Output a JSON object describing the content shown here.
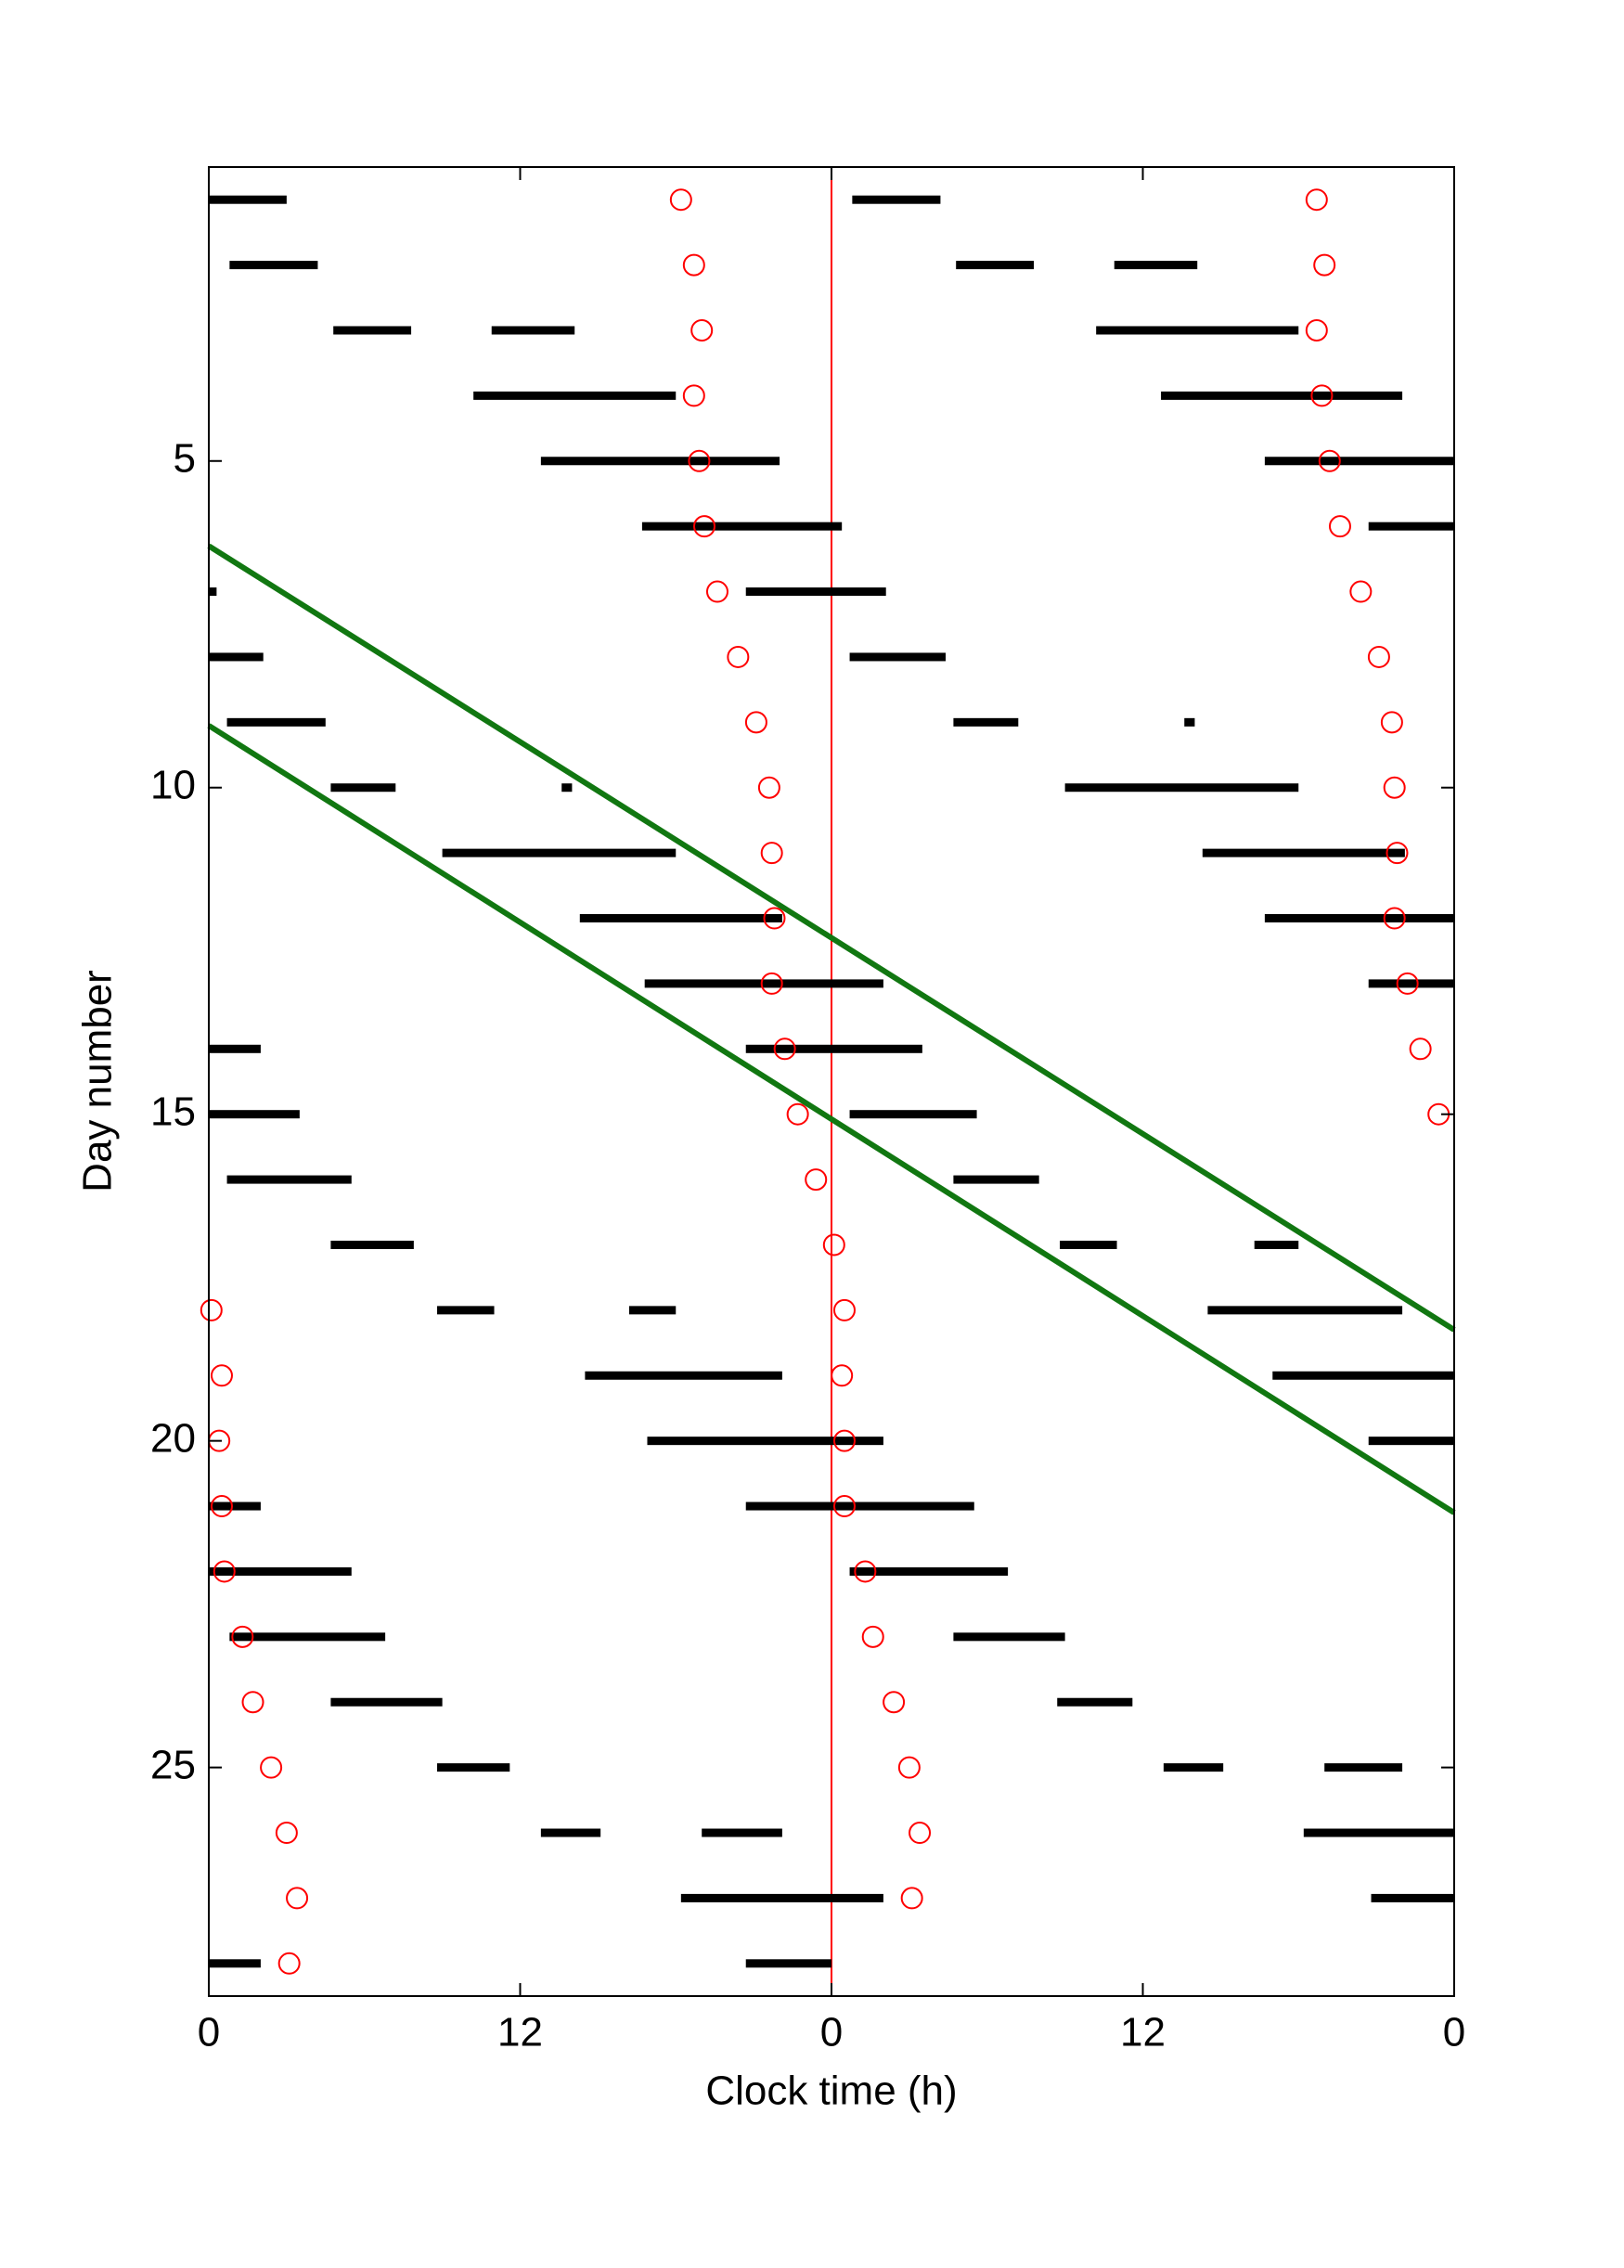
{
  "chart_data": {
    "type": "actogram",
    "xlabel": "Clock time (h)",
    "ylabel": "Day number",
    "xlim": [
      0,
      48
    ],
    "ylim": [
      28.5,
      0.5
    ],
    "y_inverted": true,
    "xticks": [
      0,
      12,
      {
        "value": 24,
        "label": "0"
      },
      {
        "value": 36,
        "label": "12"
      },
      {
        "value": 48,
        "label": "0"
      }
    ],
    "yticks": [
      5,
      10,
      15,
      20,
      25
    ],
    "bar_color": "#000000",
    "sleep_bouts": {
      "day": [
        1,
        1,
        2,
        2,
        2,
        3,
        3,
        3,
        4,
        4,
        5,
        5,
        6,
        6,
        7,
        7,
        8,
        8,
        9,
        9,
        9,
        10,
        10,
        10,
        11,
        11,
        12,
        12,
        13,
        13,
        14,
        14,
        15,
        15,
        16,
        16,
        17,
        17,
        17,
        18,
        18,
        18,
        19,
        19,
        20,
        20,
        21,
        21,
        22,
        22,
        23,
        23,
        24,
        24,
        25,
        25,
        25,
        26,
        26,
        26,
        27,
        27,
        28,
        28
      ],
      "start": [
        0,
        24.8,
        0.8,
        28.8,
        34.9,
        4.8,
        10.9,
        34.2,
        10.2,
        36.7,
        12.8,
        40.7,
        16.7,
        44.7,
        0,
        20.7,
        0,
        24.7,
        0.7,
        28.7,
        37.6,
        4.7,
        13.6,
        33.0,
        9.0,
        38.3,
        14.3,
        40.7,
        16.8,
        44.7,
        0,
        20.7,
        0,
        24.7,
        0.7,
        28.7,
        4.7,
        32.8,
        40.3,
        8.8,
        16.2,
        38.5,
        14.5,
        41.0,
        16.9,
        44.7,
        0,
        20.7,
        0,
        24.7,
        0.8,
        28.7,
        4.7,
        32.7,
        8.8,
        36.8,
        43.0,
        12.8,
        19.0,
        42.2,
        18.2,
        44.8,
        0,
        20.7
      ],
      "end": [
        3.0,
        28.2,
        4.2,
        31.8,
        38.1,
        7.8,
        14.1,
        42.0,
        18.0,
        46.0,
        22.0,
        48,
        24.4,
        48,
        0.3,
        26.1,
        2.1,
        28.4,
        4.5,
        31.2,
        38.0,
        7.2,
        14.0,
        42.0,
        18.0,
        46.1,
        22.1,
        48,
        26.0,
        48,
        2.0,
        27.5,
        3.5,
        29.6,
        5.5,
        32.0,
        7.9,
        35.0,
        42.0,
        11.0,
        18.0,
        46.0,
        22.1,
        48,
        26.0,
        48,
        2.0,
        29.5,
        5.5,
        30.8,
        6.8,
        33.0,
        9.0,
        35.6,
        11.6,
        39.1,
        46.0,
        15.1,
        22.1,
        48,
        26.0,
        48,
        2.0,
        24.0
      ]
    },
    "markers": {
      "color": "#ff0000",
      "y": [
        1,
        1,
        2,
        2,
        3,
        3,
        4,
        4,
        5,
        5,
        6,
        6,
        7,
        7,
        8,
        8,
        9,
        9,
        10,
        10,
        11,
        11,
        12,
        12,
        13,
        13,
        14,
        14,
        15,
        15,
        16,
        17,
        18,
        18,
        19,
        19,
        20,
        20,
        21,
        21,
        22,
        22,
        23,
        23,
        24,
        24,
        25,
        25,
        26,
        26,
        27,
        27,
        28
      ],
      "x": [
        18.2,
        42.7,
        18.7,
        43.0,
        19.0,
        42.7,
        18.7,
        42.9,
        18.9,
        43.2,
        19.1,
        43.6,
        19.6,
        44.4,
        20.4,
        45.1,
        21.1,
        45.6,
        21.6,
        45.7,
        21.7,
        45.8,
        21.8,
        45.7,
        21.7,
        46.2,
        22.2,
        46.7,
        22.7,
        47.4,
        23.4,
        24.1,
        0.1,
        24.5,
        0.5,
        24.4,
        0.4,
        24.5,
        0.5,
        24.5,
        0.6,
        25.3,
        1.3,
        25.6,
        1.7,
        26.4,
        2.4,
        27.0,
        3.0,
        27.4,
        3.4,
        27.1,
        3.1
      ]
    },
    "lines": [
      {
        "color": "#117711",
        "x": [
          0,
          48
        ],
        "y": [
          6.3,
          18.3
        ]
      },
      {
        "color": "#117711",
        "x": [
          0,
          48
        ],
        "y": [
          9.05,
          21.1
        ]
      }
    ],
    "vline": {
      "x": 24,
      "color": "#ff0000"
    }
  }
}
